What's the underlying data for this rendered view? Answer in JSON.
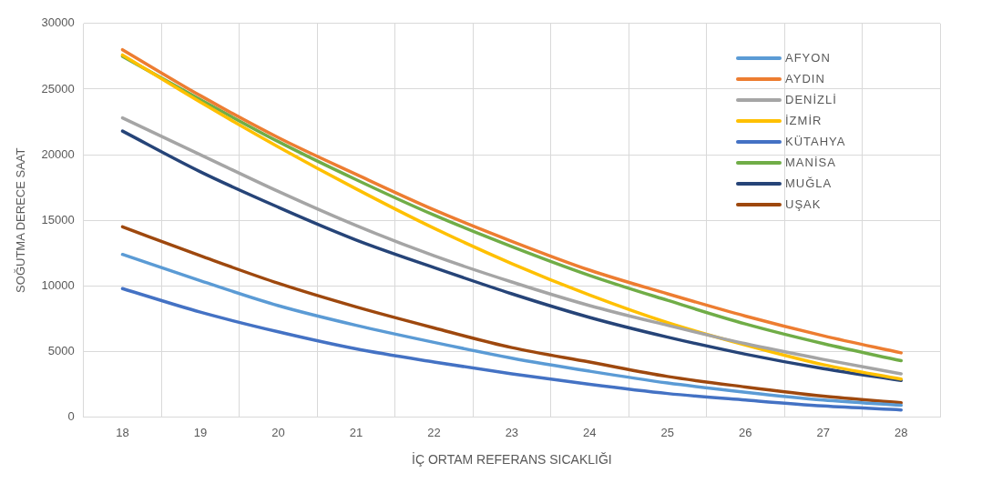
{
  "chart_data": {
    "type": "line",
    "xlabel": "İÇ ORTAM REFERANS SICAKLIĞI",
    "ylabel": "SOĞUTMA DERECE SAAT",
    "categories": [
      "18",
      "19",
      "20",
      "21",
      "22",
      "23",
      "24",
      "25",
      "26",
      "27",
      "28"
    ],
    "ylim": [
      0,
      30000
    ],
    "yticks": [
      0,
      5000,
      10000,
      15000,
      20000,
      25000,
      30000
    ],
    "grid": true,
    "legend": "top right",
    "marker": "none",
    "line_style": "solid",
    "series": [
      {
        "name": "AFYON",
        "color": "#5b9bd5",
        "values": [
          12400,
          10400,
          8500,
          7000,
          5700,
          4500,
          3500,
          2600,
          1900,
          1300,
          900
        ]
      },
      {
        "name": "AYDIN",
        "color": "#ed7d31",
        "values": [
          28000,
          24500,
          21300,
          18500,
          15800,
          13400,
          11200,
          9400,
          7700,
          6200,
          4900
        ]
      },
      {
        "name": "DENİZLİ",
        "color": "#a5a5a5",
        "values": [
          22800,
          20000,
          17200,
          14600,
          12300,
          10300,
          8500,
          7000,
          5600,
          4400,
          3300
        ]
      },
      {
        "name": "İZMİR",
        "color": "#ffc000",
        "values": [
          27600,
          24000,
          20600,
          17400,
          14400,
          11700,
          9300,
          7200,
          5500,
          4000,
          2900
        ]
      },
      {
        "name": "KÜTAHYA",
        "color": "#4472c4",
        "values": [
          9800,
          8000,
          6500,
          5200,
          4200,
          3300,
          2500,
          1800,
          1300,
          850,
          550
        ]
      },
      {
        "name": "MANİSA",
        "color": "#70ad47",
        "values": [
          27500,
          24200,
          21000,
          18100,
          15400,
          13000,
          10800,
          8900,
          7100,
          5600,
          4300
        ]
      },
      {
        "name": "MUĞLA",
        "color": "#264478",
        "values": [
          21800,
          18700,
          16000,
          13500,
          11400,
          9400,
          7600,
          6100,
          4800,
          3700,
          2800
        ]
      },
      {
        "name": "UŞAK",
        "color": "#9e480e",
        "values": [
          14500,
          12300,
          10200,
          8400,
          6800,
          5300,
          4200,
          3100,
          2300,
          1600,
          1100
        ]
      }
    ]
  }
}
